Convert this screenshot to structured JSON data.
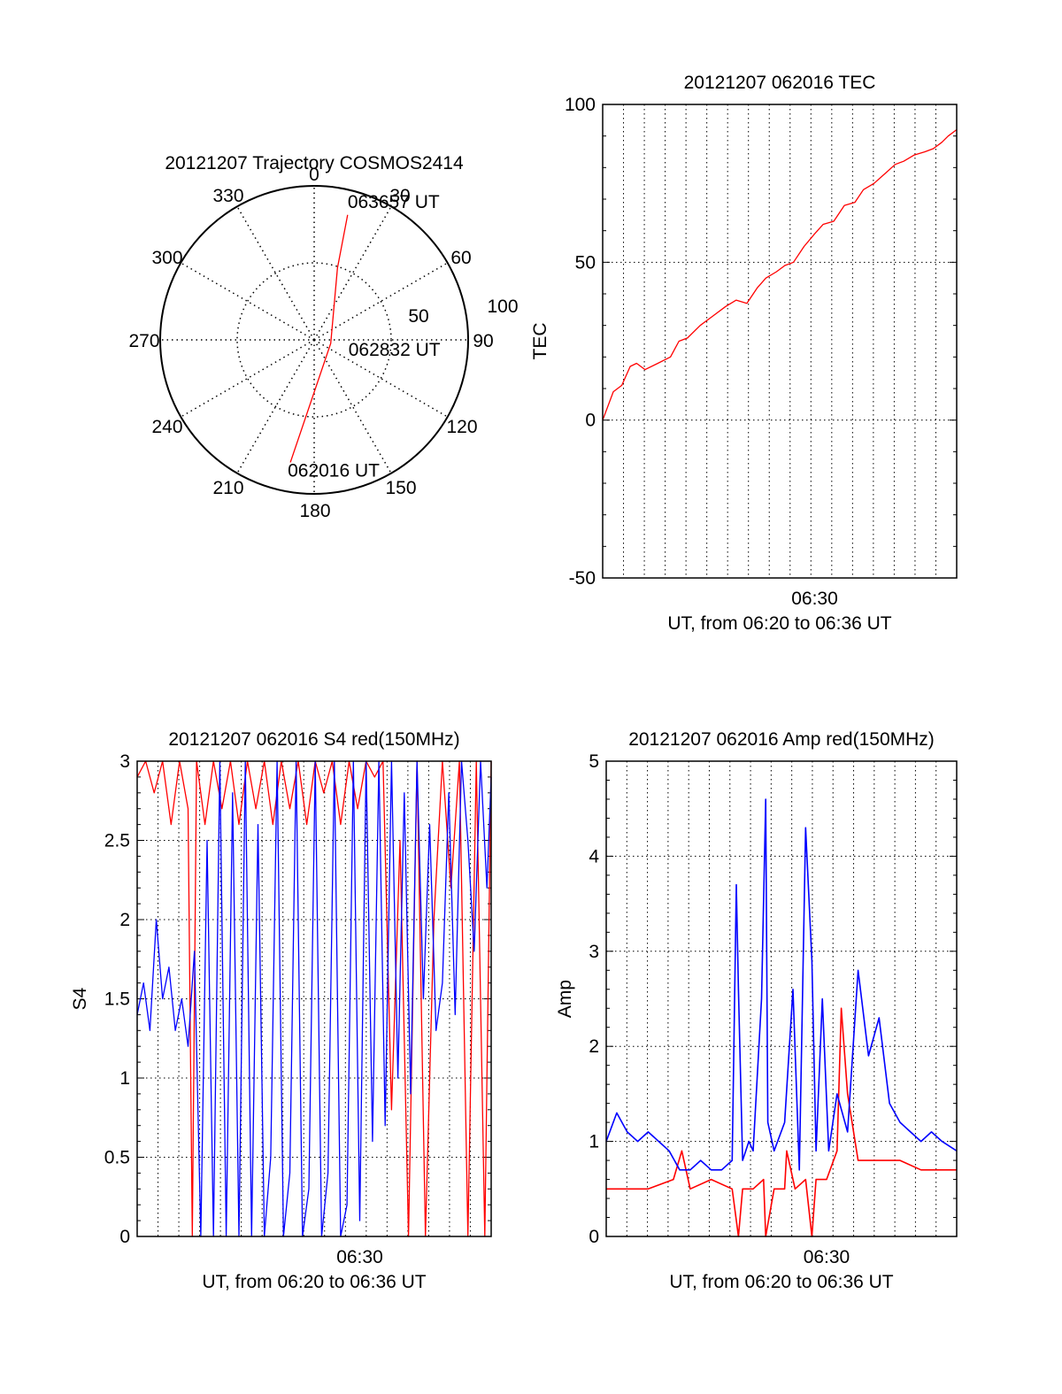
{
  "chart_data": [
    {
      "type": "polar",
      "title": "20121207 Trajectory COSMOS2414",
      "azimuth_labels": [
        "0",
        "30",
        "60",
        "90",
        "120",
        "150",
        "180",
        "210",
        "240",
        "270",
        "300",
        "330"
      ],
      "radial_tick_labels": [
        "50",
        "100"
      ],
      "radial_ticks": [
        50,
        100
      ],
      "radial_max": 100,
      "grid": "dotted",
      "trajectory": {
        "color": "#ff0000",
        "points": [
          {
            "az": 191,
            "r": 81
          },
          {
            "az": 102,
            "r": 11
          },
          {
            "az": 18,
            "r": 49
          },
          {
            "az": 15,
            "r": 84
          }
        ],
        "labels": [
          {
            "text": "062016 UT",
            "az": 191,
            "r": 81
          },
          {
            "text": "062832 UT",
            "az": 102,
            "r": 11
          },
          {
            "text": "063657 UT",
            "az": 15,
            "r": 84
          }
        ]
      }
    },
    {
      "type": "line",
      "title": "20121207 062016 TEC",
      "xlabel": "UT, from 06:20 to 06:36 UT",
      "ylabel": "TEC",
      "xlim": [
        0,
        16.7
      ],
      "ylim": [
        -50,
        100
      ],
      "x_tick_labels": [
        {
          "x": 10,
          "label": "06:30"
        }
      ],
      "y_tick_labels": [
        "-50",
        "0",
        "50",
        "100"
      ],
      "y_ticks": [
        -50,
        0,
        50,
        100
      ],
      "grid": "dotted",
      "series": [
        {
          "color": "#ff0000",
          "x": [
            0.0,
            0.5,
            0.9,
            1.3,
            1.6,
            2.0,
            2.6,
            3.2,
            3.6,
            4.0,
            4.6,
            5.2,
            5.8,
            6.3,
            6.8,
            7.3,
            7.7,
            8.2,
            8.6,
            9.0,
            9.5,
            10.0,
            10.4,
            10.9,
            11.4,
            11.9,
            12.3,
            12.8,
            13.3,
            13.8,
            14.2,
            14.7,
            15.2,
            15.6,
            16.0,
            16.3,
            16.7
          ],
          "y": [
            0,
            9,
            11,
            17,
            18,
            16,
            18,
            20,
            25,
            26,
            30,
            33,
            36,
            38,
            37,
            42,
            45,
            47,
            49,
            50,
            55,
            59,
            62,
            63,
            68,
            69,
            73,
            75,
            78,
            81,
            82,
            84,
            85,
            86,
            88,
            90,
            92
          ]
        }
      ]
    },
    {
      "type": "line",
      "title": "20121207 062016 S4 red(150MHz)",
      "xlabel": "UT, from 06:20 to 06:36 UT",
      "ylabel": "S4",
      "xlim": [
        0,
        16.7
      ],
      "ylim": [
        0,
        3
      ],
      "x_tick_labels": [
        {
          "x": 10.5,
          "label": "06:30"
        }
      ],
      "y_tick_labels": [
        "0",
        "0.5",
        "1",
        "1.5",
        "2",
        "2.5",
        "3"
      ],
      "y_ticks": [
        0,
        0.5,
        1,
        1.5,
        2,
        2.5,
        3
      ],
      "grid": "dotted",
      "series": [
        {
          "color": "#ff0000",
          "x": [
            0.0,
            0.4,
            0.8,
            1.2,
            1.6,
            2.0,
            2.4,
            2.6,
            2.8,
            3.2,
            3.6,
            4.0,
            4.4,
            4.8,
            5.2,
            5.6,
            6.0,
            6.4,
            6.8,
            7.2,
            7.6,
            8.0,
            8.4,
            8.8,
            9.2,
            9.6,
            10.0,
            10.4,
            10.8,
            11.2,
            11.6,
            12.0,
            12.4,
            12.8,
            13.2,
            13.6,
            14.0,
            14.4,
            14.8,
            15.2,
            15.6,
            16.0,
            16.4,
            16.7
          ],
          "y": [
            2.9,
            3.0,
            2.8,
            3.0,
            2.6,
            3.0,
            2.7,
            0.0,
            3.0,
            2.6,
            3.0,
            2.7,
            3.0,
            2.6,
            3.0,
            2.7,
            3.0,
            2.6,
            3.0,
            2.7,
            3.0,
            2.6,
            3.0,
            2.8,
            3.0,
            2.6,
            3.0,
            2.7,
            3.0,
            2.9,
            3.0,
            0.8,
            2.5,
            0.0,
            3.0,
            0.0,
            2.0,
            3.0,
            2.2,
            3.0,
            0.0,
            3.0,
            0.0,
            3.0
          ]
        },
        {
          "color": "#0000ff",
          "x": [
            0.0,
            0.3,
            0.6,
            0.9,
            1.2,
            1.5,
            1.8,
            2.1,
            2.4,
            2.7,
            3.0,
            3.3,
            3.6,
            3.9,
            4.2,
            4.5,
            4.8,
            5.1,
            5.4,
            5.7,
            6.0,
            6.3,
            6.6,
            6.9,
            7.2,
            7.5,
            7.8,
            8.1,
            8.4,
            8.7,
            9.0,
            9.3,
            9.6,
            9.9,
            10.2,
            10.5,
            10.8,
            11.1,
            11.4,
            11.7,
            12.0,
            12.3,
            12.6,
            12.9,
            13.2,
            13.5,
            13.8,
            14.1,
            14.4,
            14.7,
            15.0,
            15.3,
            15.6,
            15.9,
            16.2,
            16.5,
            16.7
          ],
          "y": [
            1.4,
            1.6,
            1.3,
            2.0,
            1.5,
            1.7,
            1.3,
            1.5,
            1.2,
            1.8,
            0.0,
            2.5,
            0.0,
            3.0,
            0.0,
            2.8,
            0.0,
            3.0,
            0.0,
            2.6,
            0.0,
            0.5,
            3.0,
            0.0,
            0.4,
            3.0,
            0.0,
            0.3,
            3.0,
            0.0,
            0.4,
            3.0,
            0.0,
            0.2,
            3.0,
            0.1,
            3.0,
            0.6,
            3.0,
            0.7,
            3.0,
            1.0,
            2.8,
            0.9,
            3.0,
            1.5,
            2.6,
            1.3,
            1.6,
            2.8,
            1.4,
            3.0,
            2.5,
            1.8,
            3.0,
            2.2,
            2.9
          ]
        }
      ]
    },
    {
      "type": "line",
      "title": "20121207 062016 Amp red(150MHz)",
      "xlabel": "UT, from 06:20 to 06:36 UT",
      "ylabel": "Amp",
      "xlim": [
        0,
        16.7
      ],
      "ylim": [
        0,
        5
      ],
      "x_tick_labels": [
        {
          "x": 10.5,
          "label": "06:30"
        }
      ],
      "y_tick_labels": [
        "0",
        "1",
        "2",
        "3",
        "4",
        "5"
      ],
      "y_ticks": [
        0,
        1,
        2,
        3,
        4,
        5
      ],
      "grid": "dotted",
      "series": [
        {
          "color": "#ff0000",
          "x": [
            0.0,
            2.0,
            3.2,
            3.6,
            4.0,
            5.0,
            6.0,
            6.3,
            6.5,
            7.0,
            7.5,
            7.6,
            8.0,
            8.5,
            8.6,
            9.0,
            9.5,
            9.8,
            10.0,
            10.5,
            11.0,
            11.2,
            11.5,
            12.0,
            13.0,
            14.0,
            15.0,
            16.0,
            16.7
          ],
          "y": [
            0.5,
            0.5,
            0.6,
            0.9,
            0.5,
            0.6,
            0.5,
            0.0,
            0.5,
            0.5,
            0.6,
            0.0,
            0.5,
            0.5,
            0.9,
            0.5,
            0.6,
            0.0,
            0.6,
            0.6,
            0.9,
            2.4,
            1.5,
            0.8,
            0.8,
            0.8,
            0.7,
            0.7,
            0.7
          ]
        },
        {
          "color": "#0000ff",
          "x": [
            0.0,
            0.5,
            1.0,
            1.5,
            2.0,
            2.5,
            3.0,
            3.5,
            4.0,
            4.5,
            5.0,
            5.5,
            6.0,
            6.2,
            6.3,
            6.5,
            6.8,
            7.0,
            7.4,
            7.6,
            7.7,
            8.0,
            8.5,
            8.9,
            9.2,
            9.5,
            9.8,
            10.0,
            10.3,
            10.6,
            11.0,
            11.5,
            12.0,
            12.5,
            13.0,
            13.5,
            14.0,
            14.5,
            15.0,
            15.5,
            16.0,
            16.7
          ],
          "y": [
            1.0,
            1.3,
            1.1,
            1.0,
            1.1,
            1.0,
            0.9,
            0.7,
            0.7,
            0.8,
            0.7,
            0.7,
            0.8,
            3.7,
            2.6,
            0.8,
            1.0,
            0.9,
            2.5,
            4.6,
            1.2,
            0.9,
            1.2,
            2.6,
            0.7,
            4.3,
            2.9,
            0.9,
            2.5,
            0.9,
            1.5,
            1.1,
            2.8,
            1.9,
            2.3,
            1.4,
            1.2,
            1.1,
            1.0,
            1.1,
            1.0,
            0.9
          ]
        }
      ]
    }
  ]
}
